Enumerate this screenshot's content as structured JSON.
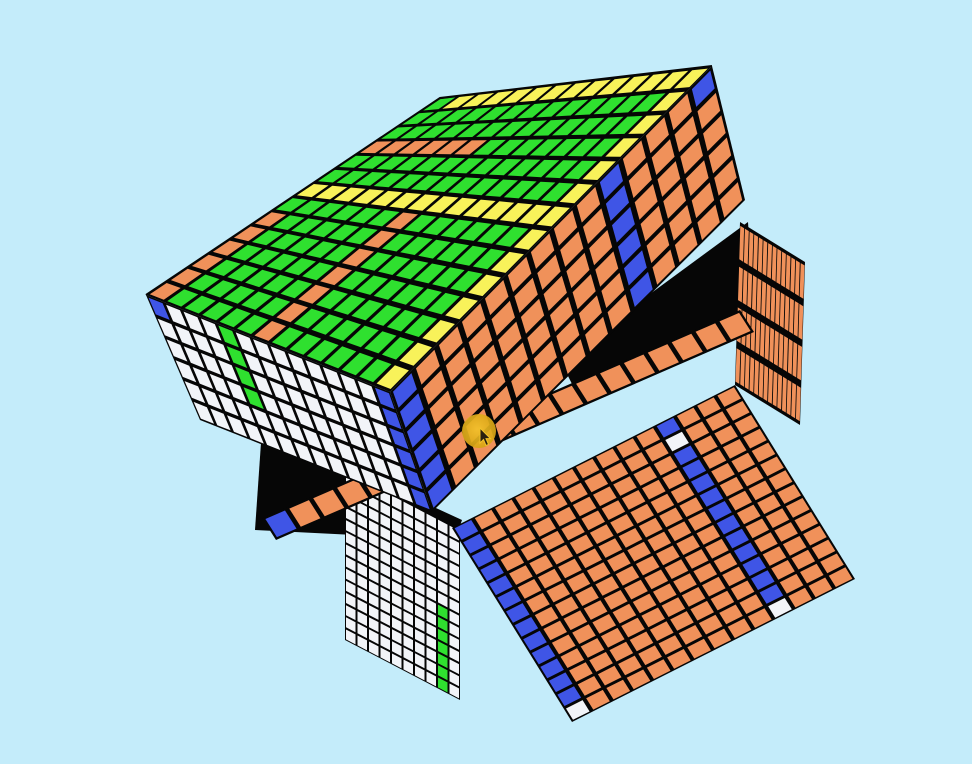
{
  "scene": {
    "background": "#c4ecfa",
    "puzzle": "14x14x14 cube",
    "layers": 14,
    "state": "mid-turn",
    "colors": {
      "orange": "#f0915a",
      "green": "#2fe02f",
      "yellow": "#f8f25a",
      "blue": "#3f55e6",
      "white": "#f2f4f8",
      "black": "#060606"
    }
  },
  "cursor": {
    "icon": "hand-pointer-icon",
    "color": "#e0ad1a"
  }
}
